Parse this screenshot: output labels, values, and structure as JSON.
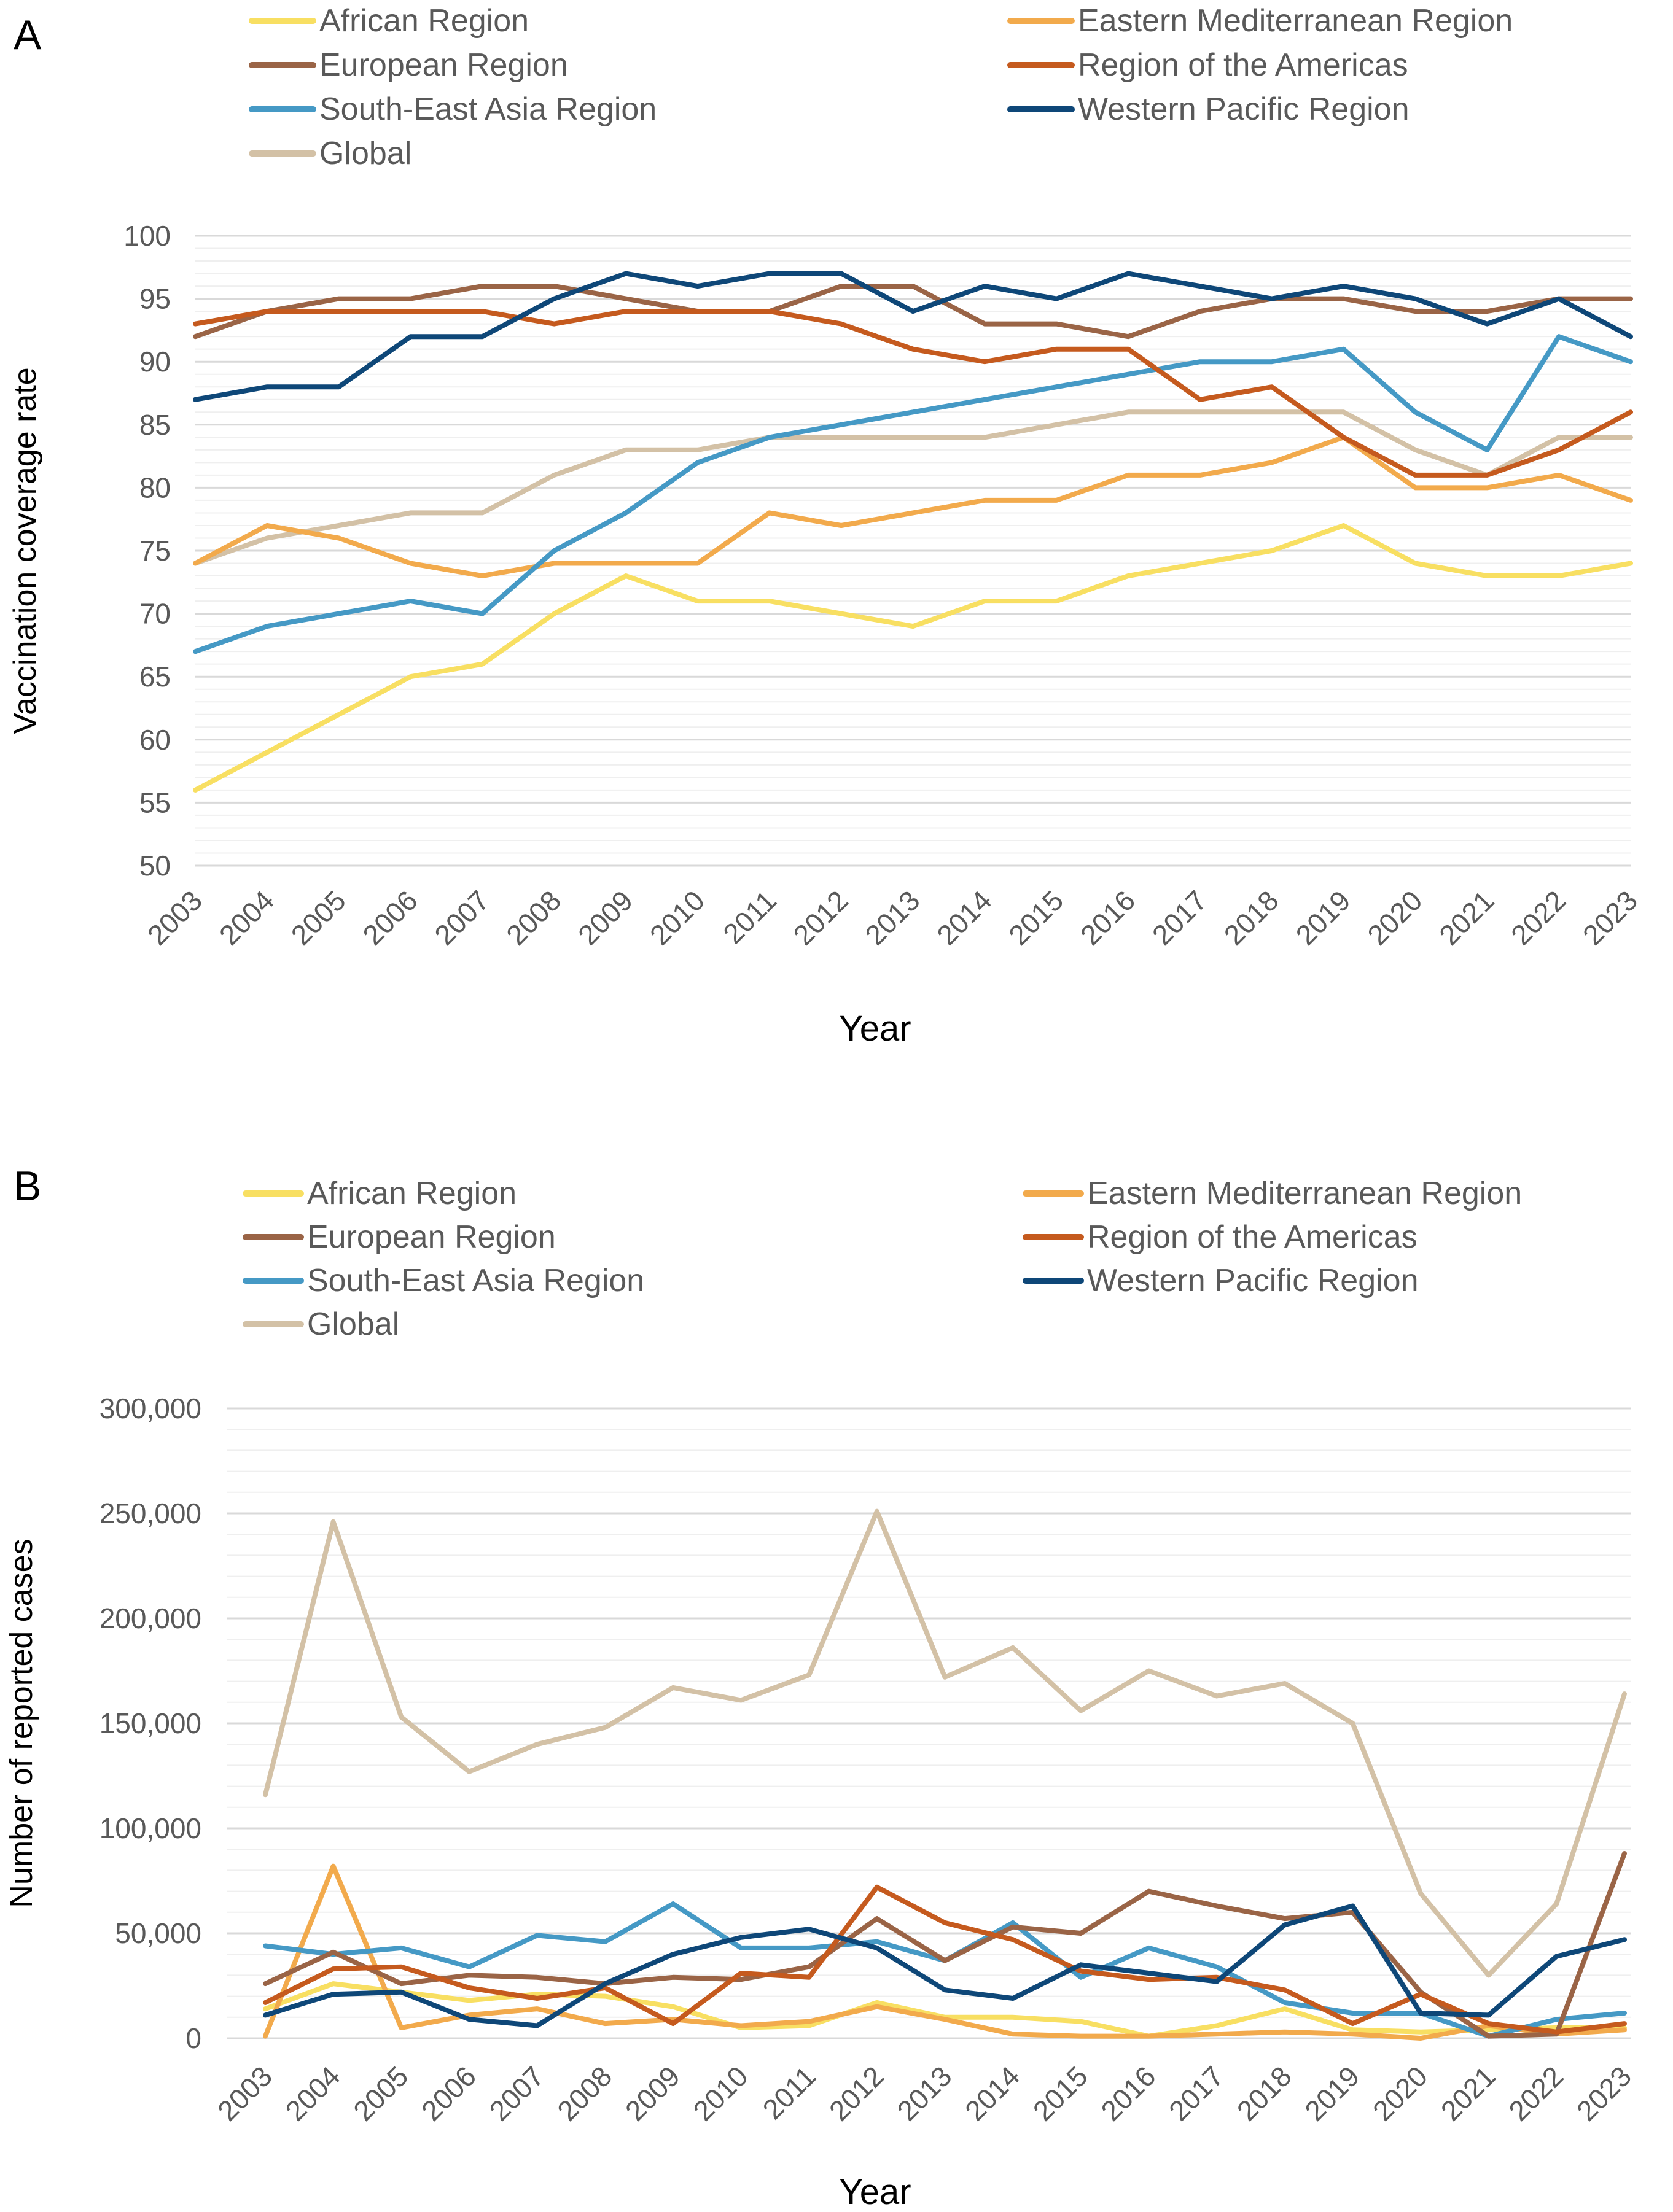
{
  "colors": {
    "African Region": "#F8DF62",
    "Eastern Mediterranean Region": "#F2AA4C",
    "European Region": "#9A6446",
    "Region of the Americas": "#C55A1E",
    "South-East Asia Region": "#4599C5",
    "Western Pacific Region": "#0E4778",
    "Global": "#D3C1A6",
    "grid": "#D9D9D9",
    "axis_text": "#595959",
    "text": "#000000"
  },
  "chart_data": [
    {
      "panel": "A",
      "type": "line",
      "title": "",
      "xlabel": "Year",
      "ylabel": "Vaccination coverage rate",
      "ylim": [
        50,
        100
      ],
      "yticks": [
        "50",
        "55",
        "60",
        "65",
        "70",
        "75",
        "80",
        "85",
        "90",
        "95",
        "100"
      ],
      "x": [
        "2003",
        "2004",
        "2005",
        "2006",
        "2007",
        "2008",
        "2009",
        "2010",
        "2011",
        "2012",
        "2013",
        "2014",
        "2015",
        "2016",
        "2017",
        "2018",
        "2019",
        "2020",
        "2021",
        "2022",
        "2023"
      ],
      "legend": [
        "African Region",
        "Eastern Mediterranean Region",
        "European Region",
        "Region of the Americas",
        "South-East Asia Region",
        "Western Pacific Region",
        "Global"
      ],
      "series": [
        {
          "name": "African Region",
          "values": [
            56,
            59,
            62,
            65,
            66,
            70,
            73,
            71,
            71,
            70,
            69,
            71,
            71,
            73,
            74,
            75,
            77,
            74,
            73,
            73,
            74
          ]
        },
        {
          "name": "Eastern Mediterranean Region",
          "values": [
            74,
            77,
            76,
            74,
            73,
            74,
            74,
            74,
            78,
            77,
            78,
            79,
            79,
            81,
            81,
            82,
            84,
            80,
            80,
            81,
            79
          ]
        },
        {
          "name": "European Region",
          "values": [
            92,
            94,
            95,
            95,
            96,
            96,
            95,
            94,
            94,
            96,
            96,
            93,
            93,
            92,
            94,
            95,
            95,
            94,
            94,
            95,
            95
          ]
        },
        {
          "name": "Region of the Americas",
          "values": [
            93,
            94,
            94,
            94,
            94,
            93,
            94,
            94,
            94,
            93,
            91,
            90,
            91,
            91,
            87,
            88,
            84,
            81,
            81,
            83,
            86
          ]
        },
        {
          "name": "South-East Asia Region",
          "values": [
            67,
            69,
            70,
            71,
            70,
            75,
            78,
            82,
            84,
            85,
            86,
            87,
            88,
            89,
            90,
            90,
            91,
            86,
            83,
            92,
            90
          ]
        },
        {
          "name": "Western Pacific Region",
          "values": [
            87,
            88,
            88,
            92,
            92,
            95,
            97,
            96,
            97,
            97,
            94,
            96,
            95,
            97,
            96,
            95,
            96,
            95,
            93,
            95,
            92
          ]
        },
        {
          "name": "Global",
          "values": [
            74,
            76,
            77,
            78,
            78,
            81,
            83,
            83,
            84,
            84,
            84,
            84,
            85,
            86,
            86,
            86,
            86,
            83,
            81,
            84,
            84
          ]
        }
      ]
    },
    {
      "panel": "B",
      "type": "line",
      "title": "",
      "xlabel": "Year",
      "ylabel": "Number of reported cases",
      "ylim": [
        0,
        300000
      ],
      "yticks": [
        "0",
        "50,000",
        "100,000",
        "150,000",
        "200,000",
        "250,000",
        "300,000"
      ],
      "x": [
        "2003",
        "2004",
        "2005",
        "2006",
        "2007",
        "2008",
        "2009",
        "2010",
        "2011",
        "2012",
        "2013",
        "2014",
        "2015",
        "2016",
        "2017",
        "2018",
        "2019",
        "2020",
        "2021",
        "2022",
        "2023"
      ],
      "legend": [
        "African Region",
        "Eastern Mediterranean Region",
        "European Region",
        "Region of the Americas",
        "South-East Asia Region",
        "Western Pacific Region",
        "Global"
      ],
      "series": [
        {
          "name": "African Region",
          "values": [
            14000,
            26000,
            22000,
            18000,
            21000,
            20000,
            15000,
            5000,
            6000,
            17000,
            10000,
            10000,
            8000,
            1000,
            6000,
            14000,
            4000,
            3000,
            4000,
            5000,
            5000
          ]
        },
        {
          "name": "Eastern Mediterranean Region",
          "values": [
            1000,
            82000,
            5000,
            11000,
            14000,
            7000,
            9000,
            6000,
            8000,
            15000,
            9000,
            2000,
            1000,
            1000,
            2000,
            3000,
            2000,
            0,
            6000,
            2000,
            4000
          ]
        },
        {
          "name": "European Region",
          "values": [
            26000,
            41000,
            26000,
            30000,
            29000,
            26000,
            29000,
            28000,
            34000,
            57000,
            37000,
            53000,
            50000,
            70000,
            63000,
            57000,
            60000,
            22000,
            1000,
            2000,
            88000
          ]
        },
        {
          "name": "Region of the Americas",
          "values": [
            17000,
            33000,
            34000,
            24000,
            19000,
            24000,
            7000,
            31000,
            29000,
            72000,
            55000,
            47000,
            32000,
            28000,
            29000,
            23000,
            7000,
            21000,
            7000,
            3000,
            7000
          ]
        },
        {
          "name": "South-East Asia Region",
          "values": [
            44000,
            40000,
            43000,
            34000,
            49000,
            46000,
            64000,
            43000,
            43000,
            46000,
            37000,
            55000,
            29000,
            43000,
            34000,
            17000,
            12000,
            12000,
            1000,
            9000,
            12000
          ]
        },
        {
          "name": "Western Pacific Region",
          "values": [
            11000,
            21000,
            22000,
            9000,
            6000,
            26000,
            40000,
            48000,
            52000,
            43000,
            23000,
            19000,
            35000,
            31000,
            27000,
            54000,
            63000,
            12000,
            11000,
            39000,
            47000
          ]
        },
        {
          "name": "Global",
          "values": [
            116000,
            246000,
            153000,
            127000,
            140000,
            148000,
            167000,
            161000,
            173000,
            251000,
            172000,
            186000,
            156000,
            175000,
            163000,
            169000,
            150000,
            69000,
            30000,
            64000,
            164000
          ]
        }
      ]
    }
  ],
  "panel_labels": [
    "A",
    "B"
  ]
}
